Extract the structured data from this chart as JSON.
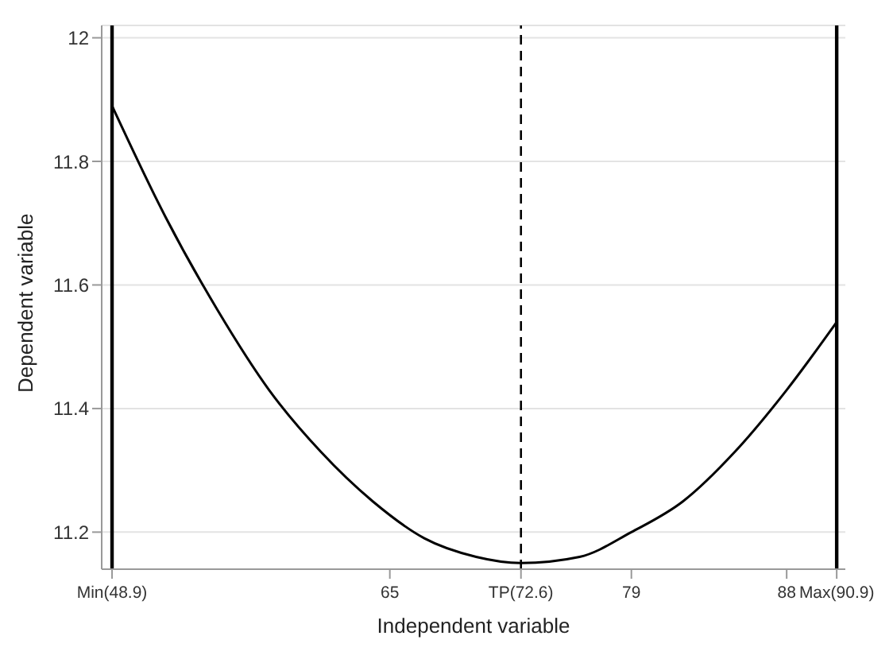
{
  "chart_data": {
    "type": "line",
    "xlabel": "Independent variable",
    "ylabel": "Dependent variable",
    "x": [
      48.9,
      52,
      55,
      58,
      61,
      64,
      67,
      70,
      72.6,
      76,
      79,
      82,
      85,
      88,
      90.9
    ],
    "series": [
      {
        "color": "#000000",
        "values": [
          11.89,
          11.71,
          11.56,
          11.43,
          11.33,
          11.25,
          11.19,
          11.16,
          11.15,
          11.16,
          11.2,
          11.25,
          11.33,
          11.43,
          11.54
        ]
      }
    ],
    "xlim": [
      48.3,
      91.4
    ],
    "xticks": [
      {
        "value": 48.9,
        "label": "Min(48.9)"
      },
      65,
      {
        "value": 72.6,
        "label": "TP(72.6)"
      },
      79,
      88,
      {
        "value": 90.9,
        "label": "Max(90.9)"
      }
    ],
    "ylim": [
      11.14,
      12.02
    ],
    "yticks": [
      11.2,
      11.4,
      11.6,
      11.8,
      12
    ],
    "grid": "y",
    "legend": false,
    "marker": "none",
    "line_style": "solid",
    "ref_lines": [
      {
        "axis": "x",
        "value": 48.9,
        "color": "#000000",
        "line_style": "solid"
      },
      {
        "axis": "x",
        "value": 72.6,
        "color": "#000000",
        "line_style": "dashed"
      },
      {
        "axis": "x",
        "value": 90.9,
        "color": "#000000",
        "line_style": "solid"
      }
    ]
  }
}
